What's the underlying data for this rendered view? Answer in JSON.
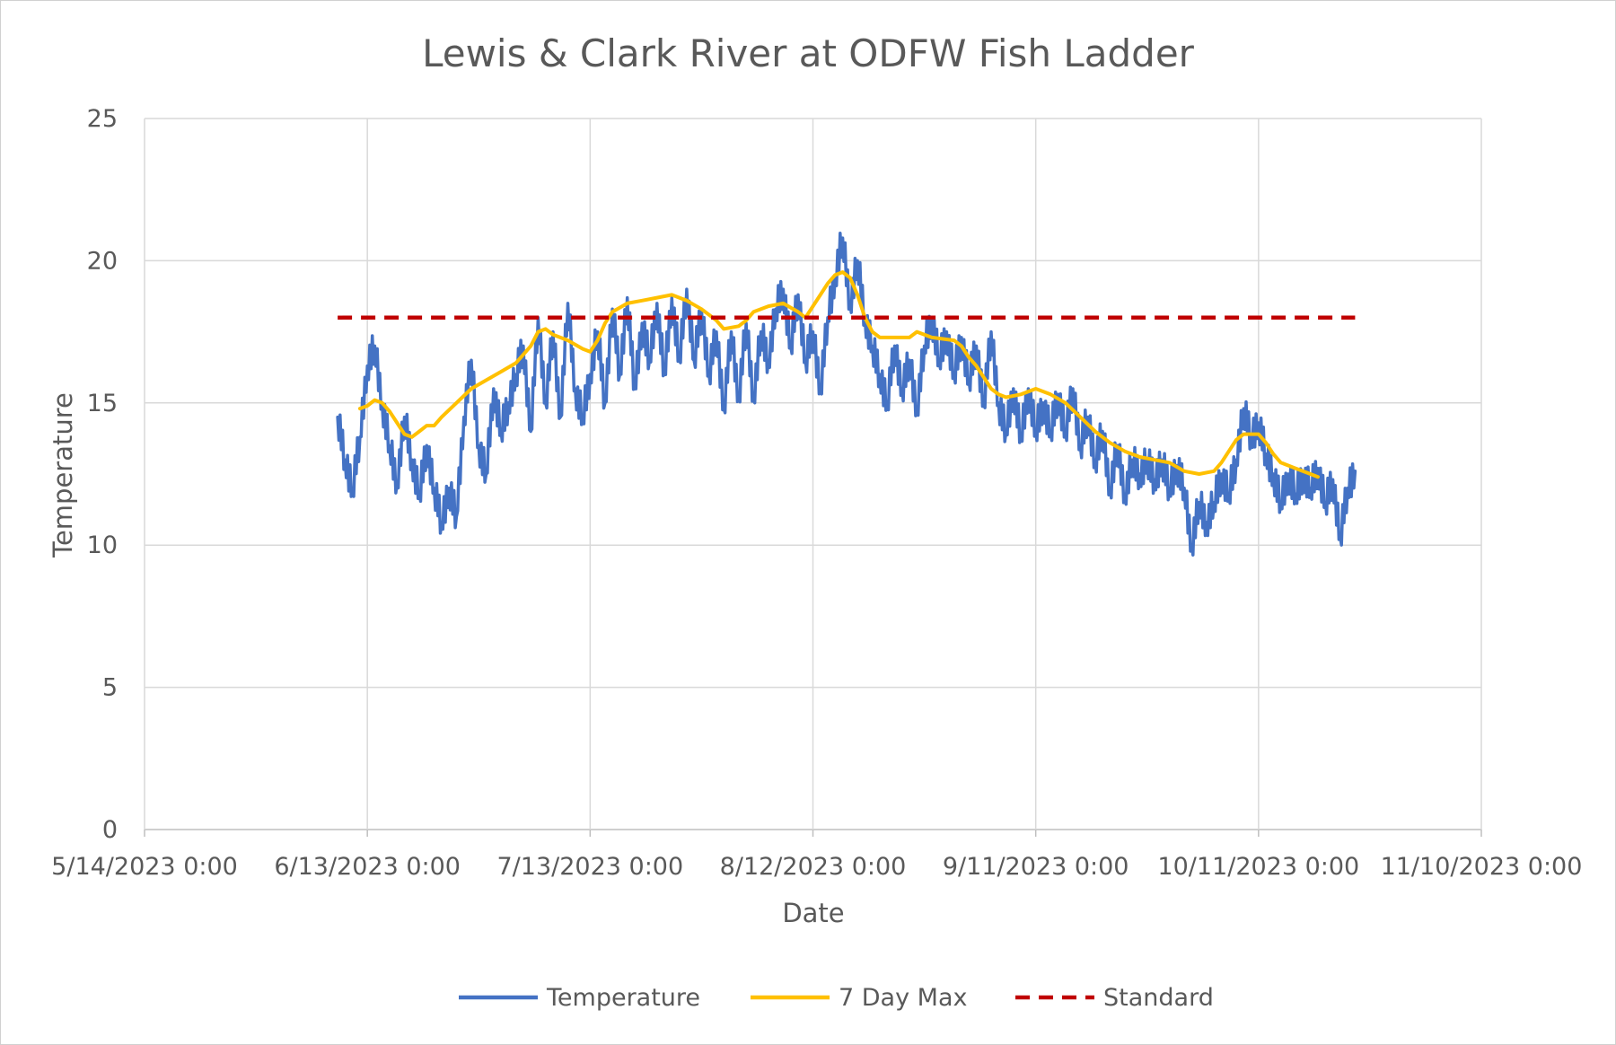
{
  "chart_data": {
    "type": "line",
    "title": "Lewis & Clark River at ODFW Fish Ladder",
    "xlabel": "Date",
    "ylabel": "Temperature",
    "ylim": [
      0,
      25
    ],
    "yticks": [
      "0",
      "5",
      "10",
      "15",
      "20",
      "25"
    ],
    "xlim": [
      "2023-05-14",
      "2023-11-10"
    ],
    "xticks": [
      "5/14/2023 0:00",
      "6/13/2023 0:00",
      "7/13/2023 0:00",
      "8/12/2023 0:00",
      "9/11/2023 0:00",
      "10/11/2023 0:00",
      "11/10/2023 0:00"
    ],
    "grid": true,
    "legend_position": "bottom",
    "series": [
      {
        "name": "Temperature",
        "color": "#4472C4",
        "style": "solid",
        "points": [
          [
            "2023-06-09",
            14.5
          ],
          [
            "2023-06-10",
            13.0
          ],
          [
            "2023-06-11",
            12.0
          ],
          [
            "2023-06-12",
            13.8
          ],
          [
            "2023-06-13",
            16.3
          ],
          [
            "2023-06-14",
            17.0
          ],
          [
            "2023-06-15",
            15.0
          ],
          [
            "2023-06-16",
            13.5
          ],
          [
            "2023-06-17",
            12.2
          ],
          [
            "2023-06-18",
            14.5
          ],
          [
            "2023-06-19",
            13.0
          ],
          [
            "2023-06-20",
            11.8
          ],
          [
            "2023-06-21",
            13.5
          ],
          [
            "2023-06-22",
            12.0
          ],
          [
            "2023-06-23",
            10.8
          ],
          [
            "2023-06-24",
            12.0
          ],
          [
            "2023-06-25",
            11.0
          ],
          [
            "2023-06-26",
            14.5
          ],
          [
            "2023-06-27",
            16.5
          ],
          [
            "2023-06-28",
            13.5
          ],
          [
            "2023-06-29",
            12.5
          ],
          [
            "2023-06-30",
            15.5
          ],
          [
            "2023-07-01",
            14.0
          ],
          [
            "2023-07-02",
            15.0
          ],
          [
            "2023-07-03",
            16.0
          ],
          [
            "2023-07-04",
            17.0
          ],
          [
            "2023-07-05",
            14.0
          ],
          [
            "2023-07-06",
            18.0
          ],
          [
            "2023-07-07",
            15.0
          ],
          [
            "2023-07-08",
            17.5
          ],
          [
            "2023-07-09",
            14.5
          ],
          [
            "2023-07-10",
            18.5
          ],
          [
            "2023-07-11",
            15.5
          ],
          [
            "2023-07-12",
            14.5
          ],
          [
            "2023-07-13",
            16.0
          ],
          [
            "2023-07-14",
            17.5
          ],
          [
            "2023-07-15",
            15.0
          ],
          [
            "2023-07-16",
            18.3
          ],
          [
            "2023-07-17",
            16.0
          ],
          [
            "2023-07-18",
            18.7
          ],
          [
            "2023-07-19",
            15.5
          ],
          [
            "2023-07-20",
            17.8
          ],
          [
            "2023-07-21",
            16.5
          ],
          [
            "2023-07-22",
            18.5
          ],
          [
            "2023-07-23",
            16.0
          ],
          [
            "2023-07-24",
            18.7
          ],
          [
            "2023-07-25",
            16.5
          ],
          [
            "2023-07-26",
            19.0
          ],
          [
            "2023-07-27",
            16.5
          ],
          [
            "2023-07-28",
            18.3
          ],
          [
            "2023-07-29",
            16.0
          ],
          [
            "2023-07-30",
            17.5
          ],
          [
            "2023-07-31",
            14.8
          ],
          [
            "2023-08-01",
            17.5
          ],
          [
            "2023-08-02",
            15.2
          ],
          [
            "2023-08-03",
            17.8
          ],
          [
            "2023-08-04",
            15.2
          ],
          [
            "2023-08-05",
            17.5
          ],
          [
            "2023-08-06",
            16.5
          ],
          [
            "2023-08-07",
            18.3
          ],
          [
            "2023-08-08",
            19.0
          ],
          [
            "2023-08-09",
            17.0
          ],
          [
            "2023-08-10",
            18.8
          ],
          [
            "2023-08-11",
            16.5
          ],
          [
            "2023-08-12",
            17.5
          ],
          [
            "2023-08-13",
            15.5
          ],
          [
            "2023-08-14",
            18.0
          ],
          [
            "2023-08-15",
            19.5
          ],
          [
            "2023-08-16",
            20.8
          ],
          [
            "2023-08-17",
            18.5
          ],
          [
            "2023-08-18",
            20.0
          ],
          [
            "2023-08-19",
            18.0
          ],
          [
            "2023-08-20",
            17.0
          ],
          [
            "2023-08-21",
            16.0
          ],
          [
            "2023-08-22",
            15.0
          ],
          [
            "2023-08-23",
            17.0
          ],
          [
            "2023-08-24",
            15.5
          ],
          [
            "2023-08-25",
            16.5
          ],
          [
            "2023-08-26",
            14.8
          ],
          [
            "2023-08-27",
            17.0
          ],
          [
            "2023-08-28",
            18.0
          ],
          [
            "2023-08-29",
            16.5
          ],
          [
            "2023-08-30",
            17.5
          ],
          [
            "2023-08-31",
            16.0
          ],
          [
            "2023-09-01",
            17.3
          ],
          [
            "2023-09-02",
            15.8
          ],
          [
            "2023-09-03",
            17.0
          ],
          [
            "2023-09-04",
            15.0
          ],
          [
            "2023-09-05",
            17.5
          ],
          [
            "2023-09-06",
            15.0
          ],
          [
            "2023-09-07",
            14.0
          ],
          [
            "2023-09-08",
            15.5
          ],
          [
            "2023-09-09",
            13.8
          ],
          [
            "2023-09-10",
            15.5
          ],
          [
            "2023-09-11",
            14.0
          ],
          [
            "2023-09-12",
            15.0
          ],
          [
            "2023-09-13",
            14.0
          ],
          [
            "2023-09-14",
            15.3
          ],
          [
            "2023-09-15",
            14.0
          ],
          [
            "2023-09-16",
            15.5
          ],
          [
            "2023-09-17",
            13.5
          ],
          [
            "2023-09-18",
            14.5
          ],
          [
            "2023-09-19",
            13.0
          ],
          [
            "2023-09-20",
            14.0
          ],
          [
            "2023-09-21",
            12.0
          ],
          [
            "2023-09-22",
            13.5
          ],
          [
            "2023-09-23",
            11.8
          ],
          [
            "2023-09-24",
            13.0
          ],
          [
            "2023-09-25",
            12.5
          ],
          [
            "2023-09-26",
            13.0
          ],
          [
            "2023-09-27",
            12.3
          ],
          [
            "2023-09-28",
            13.0
          ],
          [
            "2023-09-29",
            12.0
          ],
          [
            "2023-09-30",
            12.8
          ],
          [
            "2023-10-01",
            12.0
          ],
          [
            "2023-10-02",
            10.0
          ],
          [
            "2023-10-03",
            11.5
          ],
          [
            "2023-10-04",
            10.8
          ],
          [
            "2023-10-05",
            11.5
          ],
          [
            "2023-10-06",
            12.5
          ],
          [
            "2023-10-07",
            11.8
          ],
          [
            "2023-10-08",
            13.0
          ],
          [
            "2023-10-09",
            14.8
          ],
          [
            "2023-10-10",
            13.8
          ],
          [
            "2023-10-11",
            14.3
          ],
          [
            "2023-10-12",
            13.2
          ],
          [
            "2023-10-13",
            12.5
          ],
          [
            "2023-10-14",
            11.5
          ],
          [
            "2023-10-15",
            12.5
          ],
          [
            "2023-10-16",
            11.8
          ],
          [
            "2023-10-17",
            12.5
          ],
          [
            "2023-10-18",
            12.0
          ],
          [
            "2023-10-19",
            12.7
          ],
          [
            "2023-10-20",
            11.5
          ],
          [
            "2023-10-21",
            12.3
          ],
          [
            "2023-10-22",
            10.3
          ],
          [
            "2023-10-23",
            12.0
          ],
          [
            "2023-10-24",
            12.6
          ]
        ]
      },
      {
        "name": "7 Day Max",
        "color": "#FFC000",
        "style": "solid",
        "points": [
          [
            "2023-06-12",
            14.8
          ],
          [
            "2023-06-13",
            14.9
          ],
          [
            "2023-06-14",
            15.1
          ],
          [
            "2023-06-15",
            15.0
          ],
          [
            "2023-06-16",
            14.7
          ],
          [
            "2023-06-17",
            14.3
          ],
          [
            "2023-06-18",
            13.9
          ],
          [
            "2023-06-19",
            13.8
          ],
          [
            "2023-06-20",
            14.0
          ],
          [
            "2023-06-21",
            14.2
          ],
          [
            "2023-06-22",
            14.2
          ],
          [
            "2023-06-23",
            14.5
          ],
          [
            "2023-06-25",
            15.0
          ],
          [
            "2023-06-27",
            15.5
          ],
          [
            "2023-06-29",
            15.8
          ],
          [
            "2023-07-01",
            16.1
          ],
          [
            "2023-07-03",
            16.4
          ],
          [
            "2023-07-05",
            17.0
          ],
          [
            "2023-07-06",
            17.5
          ],
          [
            "2023-07-07",
            17.6
          ],
          [
            "2023-07-08",
            17.4
          ],
          [
            "2023-07-10",
            17.2
          ],
          [
            "2023-07-12",
            16.9
          ],
          [
            "2023-07-13",
            16.8
          ],
          [
            "2023-07-14",
            17.2
          ],
          [
            "2023-07-15",
            17.8
          ],
          [
            "2023-07-16",
            18.2
          ],
          [
            "2023-07-18",
            18.5
          ],
          [
            "2023-07-20",
            18.6
          ],
          [
            "2023-07-22",
            18.7
          ],
          [
            "2023-07-24",
            18.8
          ],
          [
            "2023-07-26",
            18.6
          ],
          [
            "2023-07-28",
            18.3
          ],
          [
            "2023-07-30",
            17.9
          ],
          [
            "2023-07-31",
            17.6
          ],
          [
            "2023-08-02",
            17.7
          ],
          [
            "2023-08-03",
            17.9
          ],
          [
            "2023-08-04",
            18.2
          ],
          [
            "2023-08-06",
            18.4
          ],
          [
            "2023-08-08",
            18.5
          ],
          [
            "2023-08-10",
            18.2
          ],
          [
            "2023-08-11",
            18.0
          ],
          [
            "2023-08-12",
            18.4
          ],
          [
            "2023-08-13",
            18.8
          ],
          [
            "2023-08-14",
            19.2
          ],
          [
            "2023-08-15",
            19.5
          ],
          [
            "2023-08-16",
            19.6
          ],
          [
            "2023-08-17",
            19.4
          ],
          [
            "2023-08-18",
            18.8
          ],
          [
            "2023-08-19",
            18.0
          ],
          [
            "2023-08-20",
            17.5
          ],
          [
            "2023-08-21",
            17.3
          ],
          [
            "2023-08-24",
            17.3
          ],
          [
            "2023-08-25",
            17.3
          ],
          [
            "2023-08-26",
            17.5
          ],
          [
            "2023-08-27",
            17.4
          ],
          [
            "2023-08-28",
            17.3
          ],
          [
            "2023-08-31",
            17.2
          ],
          [
            "2023-09-01",
            17.0
          ],
          [
            "2023-09-02",
            16.6
          ],
          [
            "2023-09-03",
            16.3
          ],
          [
            "2023-09-04",
            15.9
          ],
          [
            "2023-09-05",
            15.5
          ],
          [
            "2023-09-06",
            15.3
          ],
          [
            "2023-09-07",
            15.2
          ],
          [
            "2023-09-09",
            15.3
          ],
          [
            "2023-09-11",
            15.5
          ],
          [
            "2023-09-13",
            15.3
          ],
          [
            "2023-09-15",
            15.0
          ],
          [
            "2023-09-17",
            14.5
          ],
          [
            "2023-09-19",
            14.0
          ],
          [
            "2023-09-21",
            13.6
          ],
          [
            "2023-09-23",
            13.3
          ],
          [
            "2023-09-25",
            13.1
          ],
          [
            "2023-09-27",
            13.0
          ],
          [
            "2023-09-29",
            12.9
          ],
          [
            "2023-10-01",
            12.6
          ],
          [
            "2023-10-03",
            12.5
          ],
          [
            "2023-10-05",
            12.6
          ],
          [
            "2023-10-06",
            12.9
          ],
          [
            "2023-10-07",
            13.3
          ],
          [
            "2023-10-08",
            13.7
          ],
          [
            "2023-10-09",
            13.9
          ],
          [
            "2023-10-11",
            13.9
          ],
          [
            "2023-10-12",
            13.6
          ],
          [
            "2023-10-13",
            13.2
          ],
          [
            "2023-10-14",
            12.9
          ],
          [
            "2023-10-16",
            12.7
          ],
          [
            "2023-10-18",
            12.5
          ],
          [
            "2023-10-19",
            12.4
          ]
        ]
      },
      {
        "name": "Standard",
        "color": "#C00000",
        "style": "dashed",
        "points": [
          [
            "2023-06-09",
            18.0
          ],
          [
            "2023-10-24",
            18.0
          ]
        ]
      }
    ]
  }
}
